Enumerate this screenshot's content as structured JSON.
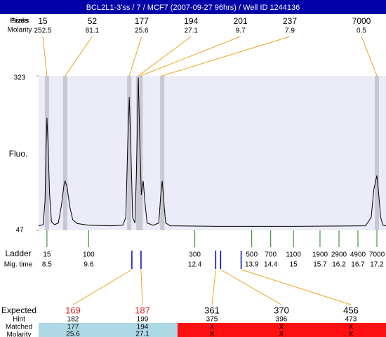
{
  "chart_data": {
    "type": "line",
    "title": "BCL2L1-3'ss / 7 / MCF7 (2007-09-27 96hrs) / Well ID 1244136",
    "peaks_label": "Peaks",
    "sizes_label": "Sizes",
    "molarity_label": "Molarity",
    "y_label": "Fluo.",
    "ylim": [
      47,
      323
    ],
    "yticks": [
      47,
      323
    ],
    "xlim": [
      8.28,
      17.44
    ],
    "peaks": {
      "sizes": [
        15,
        52,
        177,
        194,
        201,
        237,
        7000
      ],
      "molarity": [
        252.5,
        81.1,
        25.6,
        27.1,
        9.7,
        7.9,
        0.5
      ],
      "times": [
        8.5,
        8.98,
        10.67,
        10.91,
        10.97,
        11.54,
        17.2
      ]
    },
    "trace": {
      "x": [
        8.28,
        8.4,
        8.45,
        8.48,
        8.5,
        8.53,
        8.57,
        8.62,
        8.7,
        8.8,
        8.88,
        8.95,
        8.98,
        9.03,
        9.1,
        9.18,
        9.3,
        9.6,
        10.2,
        10.5,
        10.58,
        10.63,
        10.67,
        10.71,
        10.76,
        10.82,
        10.86,
        10.91,
        10.95,
        10.99,
        11.04,
        11.08,
        11.14,
        11.3,
        11.45,
        11.5,
        11.54,
        11.58,
        11.63,
        11.75,
        13,
        15,
        16.9,
        17.05,
        17.12,
        17.2,
        17.25,
        17.3,
        17.36,
        17.44
      ],
      "y": [
        55,
        57,
        100,
        200,
        248,
        200,
        110,
        62,
        57,
        60,
        90,
        128,
        135,
        125,
        90,
        66,
        59,
        56,
        55,
        56,
        70,
        200,
        285,
        200,
        70,
        60,
        150,
        320,
        200,
        110,
        135,
        100,
        60,
        56,
        60,
        110,
        135,
        100,
        60,
        55,
        54,
        54,
        55,
        70,
        120,
        145,
        110,
        70,
        56,
        55
      ]
    },
    "ladder": {
      "label": "Ladder",
      "time_label": "Mig. time",
      "sizes": [
        15,
        100,
        300,
        500,
        700,
        1100,
        1900,
        2900,
        4900,
        7000
      ],
      "times": [
        8.5,
        9.6,
        12.4,
        13.9,
        14.4,
        15,
        15.7,
        16.2,
        16.7,
        17.2
      ]
    },
    "expected": {
      "label": "Expected",
      "hint_label": "Hint",
      "matched_label": "Matched",
      "molarity_label": "Molarity",
      "values": [
        169,
        187,
        361,
        370,
        456
      ],
      "colors": [
        "#e02020",
        "#e02020",
        "#000000",
        "#000000",
        "#000000"
      ],
      "times": [
        10.74,
        10.98,
        12.95,
        13.08,
        13.62
      ],
      "hint": [
        182,
        199,
        375,
        396,
        473
      ],
      "matched": [
        177,
        194,
        "X",
        "X",
        "X"
      ],
      "molarity": [
        25.6,
        27.1,
        "X",
        "X",
        "X"
      ]
    }
  }
}
